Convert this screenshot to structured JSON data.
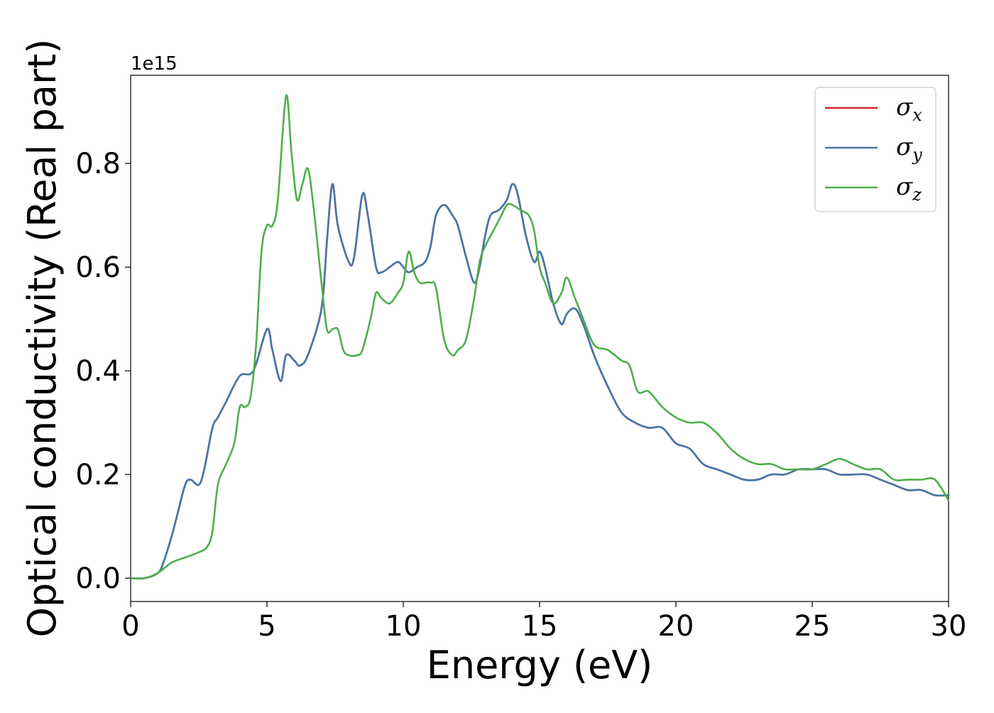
{
  "chart_data": {
    "type": "line",
    "xlabel": "Energy (eV)",
    "ylabel": "Optical conductivity (Real part)",
    "y_offset_text": "1e15",
    "y_scale_factor": 1000000000000000.0,
    "xlim": [
      0,
      30
    ],
    "ylim": [
      -0.045,
      0.97
    ],
    "x_ticks": [
      0,
      5,
      10,
      15,
      20,
      25,
      30
    ],
    "x_tick_labels": [
      "0",
      "5",
      "10",
      "15",
      "20",
      "25",
      "30"
    ],
    "y_ticks": [
      0.0,
      0.2,
      0.4,
      0.6,
      0.8
    ],
    "y_tick_labels": [
      "0.0",
      "0.2",
      "0.4",
      "0.6",
      "0.8"
    ],
    "grid": false,
    "legend_position": "top-right",
    "legend": [
      {
        "symbol": "σ",
        "subscript": "x",
        "color": "#d62728"
      },
      {
        "symbol": "σ",
        "subscript": "y",
        "color": "#4477aa"
      },
      {
        "symbol": "σ",
        "subscript": "z",
        "color": "#4daf4a"
      }
    ],
    "series": [
      {
        "name": "σx",
        "color": "#d62728",
        "x": [
          0,
          0.5,
          1.0,
          1.2,
          1.5,
          1.7,
          2.0,
          2.2,
          2.5,
          2.7,
          3.0,
          3.2,
          3.5,
          4.0,
          4.5,
          5.0,
          5.2,
          5.5,
          5.7,
          6.0,
          6.2,
          6.5,
          7.0,
          7.2,
          7.4,
          7.6,
          8.0,
          8.2,
          8.5,
          8.7,
          9.0,
          9.2,
          9.5,
          9.8,
          10.0,
          10.2,
          10.5,
          10.8,
          11.0,
          11.2,
          11.5,
          11.8,
          12.0,
          12.3,
          12.6,
          12.8,
          13.0,
          13.2,
          13.5,
          13.8,
          14.0,
          14.2,
          14.5,
          14.8,
          15.0,
          15.2,
          15.5,
          15.8,
          16.0,
          16.3,
          16.6,
          17.0,
          17.5,
          18.0,
          18.5,
          19.0,
          19.5,
          20.0,
          20.5,
          21.0,
          21.5,
          22.0,
          22.5,
          23.0,
          23.5,
          24.0,
          24.5,
          25.0,
          25.5,
          26.0,
          26.5,
          27.0,
          27.5,
          28.0,
          28.5,
          29.0,
          29.5,
          30.0
        ],
        "values": [
          0.0,
          0.0,
          0.01,
          0.03,
          0.08,
          0.12,
          0.18,
          0.19,
          0.18,
          0.21,
          0.29,
          0.31,
          0.34,
          0.39,
          0.4,
          0.48,
          0.44,
          0.38,
          0.43,
          0.42,
          0.41,
          0.43,
          0.52,
          0.65,
          0.76,
          0.68,
          0.61,
          0.62,
          0.74,
          0.7,
          0.6,
          0.59,
          0.6,
          0.61,
          0.6,
          0.59,
          0.6,
          0.61,
          0.64,
          0.7,
          0.72,
          0.7,
          0.68,
          0.62,
          0.57,
          0.6,
          0.66,
          0.7,
          0.71,
          0.73,
          0.76,
          0.74,
          0.66,
          0.61,
          0.63,
          0.6,
          0.53,
          0.49,
          0.51,
          0.52,
          0.49,
          0.43,
          0.37,
          0.32,
          0.3,
          0.29,
          0.29,
          0.26,
          0.25,
          0.22,
          0.21,
          0.2,
          0.19,
          0.19,
          0.2,
          0.2,
          0.21,
          0.21,
          0.21,
          0.2,
          0.2,
          0.2,
          0.19,
          0.18,
          0.17,
          0.17,
          0.16,
          0.16
        ]
      },
      {
        "name": "σy",
        "color": "#4477aa",
        "x": [
          0,
          0.5,
          1.0,
          1.2,
          1.5,
          1.7,
          2.0,
          2.2,
          2.5,
          2.7,
          3.0,
          3.2,
          3.5,
          4.0,
          4.5,
          5.0,
          5.2,
          5.5,
          5.7,
          6.0,
          6.2,
          6.5,
          7.0,
          7.2,
          7.4,
          7.6,
          8.0,
          8.2,
          8.5,
          8.7,
          9.0,
          9.2,
          9.5,
          9.8,
          10.0,
          10.2,
          10.5,
          10.8,
          11.0,
          11.2,
          11.5,
          11.8,
          12.0,
          12.3,
          12.6,
          12.8,
          13.0,
          13.2,
          13.5,
          13.8,
          14.0,
          14.2,
          14.5,
          14.8,
          15.0,
          15.2,
          15.5,
          15.8,
          16.0,
          16.3,
          16.6,
          17.0,
          17.5,
          18.0,
          18.5,
          19.0,
          19.5,
          20.0,
          20.5,
          21.0,
          21.5,
          22.0,
          22.5,
          23.0,
          23.5,
          24.0,
          24.5,
          25.0,
          25.5,
          26.0,
          26.5,
          27.0,
          27.5,
          28.0,
          28.5,
          29.0,
          29.5,
          30.0
        ],
        "values": [
          0.0,
          0.0,
          0.01,
          0.03,
          0.08,
          0.12,
          0.18,
          0.19,
          0.18,
          0.21,
          0.29,
          0.31,
          0.34,
          0.39,
          0.4,
          0.48,
          0.44,
          0.38,
          0.43,
          0.42,
          0.41,
          0.43,
          0.52,
          0.65,
          0.76,
          0.68,
          0.61,
          0.62,
          0.74,
          0.7,
          0.6,
          0.59,
          0.6,
          0.61,
          0.6,
          0.59,
          0.6,
          0.61,
          0.64,
          0.7,
          0.72,
          0.7,
          0.68,
          0.62,
          0.57,
          0.6,
          0.66,
          0.7,
          0.71,
          0.73,
          0.76,
          0.74,
          0.66,
          0.61,
          0.63,
          0.6,
          0.53,
          0.49,
          0.51,
          0.52,
          0.49,
          0.43,
          0.37,
          0.32,
          0.3,
          0.29,
          0.29,
          0.26,
          0.25,
          0.22,
          0.21,
          0.2,
          0.19,
          0.19,
          0.2,
          0.2,
          0.21,
          0.21,
          0.21,
          0.2,
          0.2,
          0.2,
          0.19,
          0.18,
          0.17,
          0.17,
          0.16,
          0.16
        ]
      },
      {
        "name": "σz",
        "color": "#4daf4a",
        "x": [
          0,
          0.5,
          1.0,
          1.5,
          2.0,
          2.5,
          2.8,
          3.0,
          3.2,
          3.5,
          3.8,
          4.0,
          4.2,
          4.4,
          4.6,
          4.8,
          5.0,
          5.2,
          5.4,
          5.7,
          5.9,
          6.1,
          6.3,
          6.5,
          6.7,
          7.0,
          7.2,
          7.4,
          7.6,
          7.8,
          8.0,
          8.3,
          8.5,
          8.8,
          9.0,
          9.2,
          9.5,
          9.8,
          10.0,
          10.2,
          10.4,
          10.6,
          10.8,
          11.0,
          11.2,
          11.5,
          11.8,
          12.0,
          12.3,
          12.6,
          12.8,
          13.0,
          13.3,
          13.6,
          13.8,
          14.0,
          14.3,
          14.6,
          14.8,
          15.0,
          15.2,
          15.5,
          15.8,
          16.0,
          16.3,
          16.6,
          17.0,
          17.5,
          18.0,
          18.3,
          18.6,
          19.0,
          19.5,
          20.0,
          20.5,
          21.0,
          21.5,
          22.0,
          22.5,
          23.0,
          23.5,
          24.0,
          24.5,
          25.0,
          25.5,
          26.0,
          26.5,
          27.0,
          27.5,
          28.0,
          28.5,
          29.0,
          29.5,
          30.0
        ],
        "values": [
          0.0,
          0.0,
          0.01,
          0.03,
          0.04,
          0.05,
          0.06,
          0.09,
          0.18,
          0.22,
          0.26,
          0.33,
          0.33,
          0.35,
          0.45,
          0.63,
          0.68,
          0.68,
          0.73,
          0.93,
          0.82,
          0.73,
          0.76,
          0.79,
          0.72,
          0.57,
          0.48,
          0.48,
          0.48,
          0.44,
          0.43,
          0.43,
          0.44,
          0.5,
          0.55,
          0.54,
          0.53,
          0.55,
          0.57,
          0.63,
          0.59,
          0.57,
          0.57,
          0.57,
          0.56,
          0.46,
          0.43,
          0.44,
          0.46,
          0.54,
          0.61,
          0.64,
          0.67,
          0.7,
          0.72,
          0.72,
          0.71,
          0.7,
          0.67,
          0.6,
          0.57,
          0.53,
          0.55,
          0.58,
          0.54,
          0.5,
          0.45,
          0.44,
          0.42,
          0.41,
          0.36,
          0.36,
          0.33,
          0.31,
          0.3,
          0.3,
          0.28,
          0.25,
          0.23,
          0.22,
          0.22,
          0.21,
          0.21,
          0.21,
          0.22,
          0.23,
          0.22,
          0.21,
          0.21,
          0.19,
          0.19,
          0.19,
          0.19,
          0.15
        ]
      }
    ]
  }
}
